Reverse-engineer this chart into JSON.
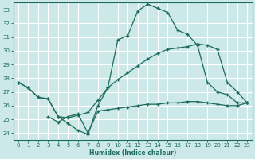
{
  "background_color": "#cce8e8",
  "grid_color": "#aacccc",
  "line_color": "#1a6b5a",
  "xlabel": "Humidex (Indice chaleur)",
  "xlim": [
    -0.5,
    23.5
  ],
  "ylim": [
    23.5,
    33.5
  ],
  "yticks": [
    24,
    25,
    26,
    27,
    28,
    29,
    30,
    31,
    32,
    33
  ],
  "xticks": [
    0,
    1,
    2,
    3,
    4,
    5,
    6,
    7,
    8,
    9,
    10,
    11,
    12,
    13,
    14,
    15,
    16,
    17,
    18,
    19,
    20,
    21,
    22,
    23
  ],
  "line1_x": [
    0,
    1,
    2,
    3,
    4,
    5,
    6,
    7,
    8,
    9,
    10,
    11,
    12,
    13,
    14,
    15,
    16,
    17,
    18,
    19,
    20,
    21,
    22,
    23
  ],
  "line1_y": [
    27.7,
    27.3,
    26.6,
    26.5,
    25.2,
    24.7,
    24.2,
    23.9,
    26.0,
    27.3,
    30.8,
    31.1,
    32.9,
    33.4,
    33.1,
    32.8,
    31.5,
    31.2,
    30.4,
    27.7,
    27.0,
    26.8,
    26.2,
    26.2
  ],
  "line2_x": [
    0,
    1,
    2,
    3,
    4,
    5,
    6,
    7,
    8,
    9,
    10,
    11,
    12,
    13,
    14,
    15,
    16,
    17,
    18,
    19,
    20,
    21,
    22,
    23
  ],
  "line2_y": [
    27.7,
    27.3,
    26.6,
    26.5,
    25.2,
    25.1,
    25.3,
    25.5,
    26.4,
    27.3,
    27.9,
    28.4,
    28.9,
    29.4,
    29.8,
    30.1,
    30.2,
    30.3,
    30.5,
    30.4,
    30.1,
    27.7,
    27.0,
    26.2
  ],
  "line3_x": [
    3,
    4,
    5,
    6,
    7,
    8,
    9,
    10,
    11,
    12,
    13,
    14,
    15,
    16,
    17,
    18,
    19,
    20,
    21,
    22,
    23
  ],
  "line3_y": [
    25.2,
    24.8,
    25.2,
    25.4,
    24.0,
    25.6,
    25.7,
    25.8,
    25.9,
    26.0,
    26.1,
    26.1,
    26.2,
    26.2,
    26.3,
    26.3,
    26.2,
    26.1,
    26.0,
    26.0,
    26.2
  ]
}
